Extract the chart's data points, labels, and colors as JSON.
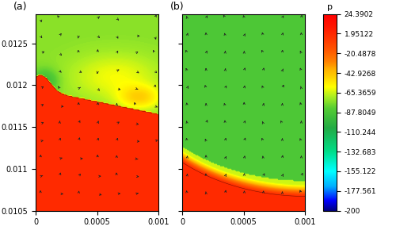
{
  "title_a": "(a)",
  "title_b": "(b)",
  "colorbar_label": "p",
  "colorbar_ticks": [
    24.3902,
    1.95122,
    -20.4878,
    -42.9268,
    -65.3659,
    -87.8049,
    -110.244,
    -132.683,
    -155.122,
    -177.561,
    -200
  ],
  "colorbar_tick_labels": [
    "24.3902",
    "1.95122",
    "-20.4878",
    "-42.9268",
    "-65.3659",
    "-87.8049",
    "-110.244",
    "-132.683",
    "-155.122",
    "-177.561",
    "-200"
  ],
  "vmin": -200,
  "vmax": 24.3902,
  "xmin": 0,
  "xmax": 0.001,
  "ymin": 0.0105,
  "ymax": 0.01285,
  "xticks": [
    0,
    0.0005,
    0.001
  ],
  "yticks": [
    0.0105,
    0.011,
    0.0115,
    0.012,
    0.0125
  ],
  "figsize": [
    5.0,
    2.95
  ],
  "dpi": 100
}
